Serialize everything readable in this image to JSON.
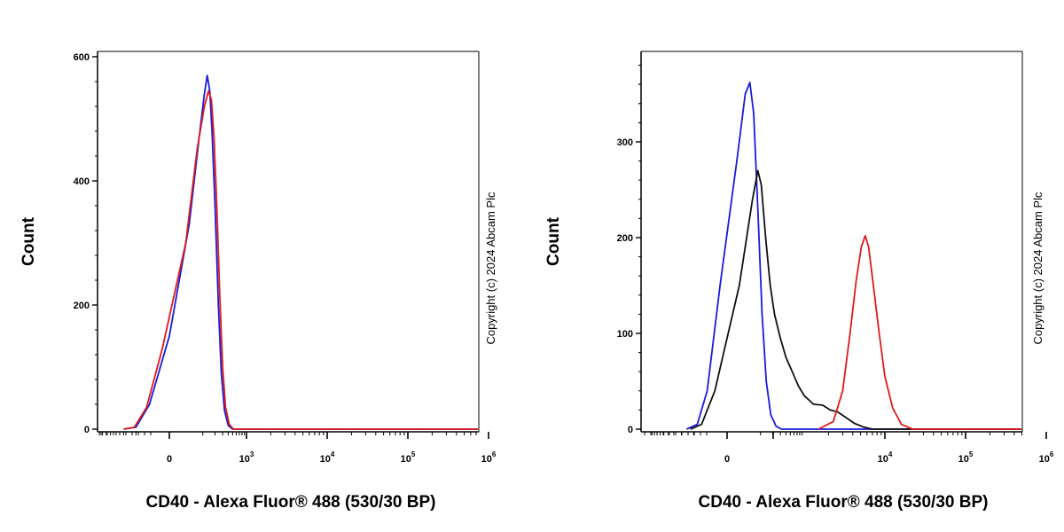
{
  "chart_data": [
    {
      "type": "line",
      "title": "",
      "xlabel": "CD40 - Alexa Fluor® 488 (530/30 BP)",
      "ylabel": "Count",
      "xscale": "biexponential",
      "ylim": [
        0,
        620
      ],
      "yticks": [
        0,
        200,
        400,
        600
      ],
      "xticks": [
        {
          "value": 0,
          "label": "0"
        },
        {
          "value": 1000,
          "base": "10",
          "exp": "3"
        },
        {
          "value": 10000,
          "base": "10",
          "exp": "4"
        },
        {
          "value": 100000,
          "base": "10",
          "exp": "5"
        },
        {
          "value": 1000000,
          "base": "10",
          "exp": "6"
        }
      ],
      "copyright": "Copyright (c) 2024 Abcam Plc",
      "series": [
        {
          "name": "blue",
          "color": "#1a1adc",
          "points": [
            [
              -200,
              0
            ],
            [
              -100,
              3
            ],
            [
              -40,
              40
            ],
            [
              0,
              150
            ],
            [
              40,
              330
            ],
            [
              80,
              470
            ],
            [
              110,
              540
            ],
            [
              130,
              570
            ],
            [
              150,
              545
            ],
            [
              170,
              480
            ],
            [
              200,
              360
            ],
            [
              240,
              200
            ],
            [
              280,
              90
            ],
            [
              330,
              30
            ],
            [
              400,
              6
            ],
            [
              500,
              0
            ],
            [
              1000000,
              0
            ]
          ]
        },
        {
          "name": "red",
          "color": "#dd1a1a",
          "points": [
            [
              -200,
              0
            ],
            [
              -110,
              3
            ],
            [
              -50,
              35
            ],
            [
              -10,
              130
            ],
            [
              30,
              300
            ],
            [
              70,
              450
            ],
            [
              110,
              520
            ],
            [
              140,
              545
            ],
            [
              165,
              530
            ],
            [
              190,
              470
            ],
            [
              220,
              360
            ],
            [
              260,
              210
            ],
            [
              300,
              100
            ],
            [
              350,
              35
            ],
            [
              420,
              8
            ],
            [
              520,
              0
            ],
            [
              1000000,
              0
            ]
          ]
        }
      ]
    },
    {
      "type": "line",
      "title": "",
      "xlabel": "CD40 - Alexa Fluor® 488 (530/30 BP)",
      "ylabel": "Count",
      "xscale": "biexponential",
      "ylim": [
        0,
        395
      ],
      "yticks": [
        0,
        100,
        200,
        300
      ],
      "xticks": [
        {
          "value": 0,
          "label": "0"
        },
        {
          "value": 10000,
          "base": "10",
          "exp": "4"
        },
        {
          "value": 100000,
          "base": "10",
          "exp": "5"
        },
        {
          "value": 1000000,
          "base": "10",
          "exp": "6"
        }
      ],
      "copyright": "Copyright (c) 2024 Abcam Plc",
      "series": [
        {
          "name": "blue",
          "color": "#1a1adc",
          "points": [
            [
              -150,
              0
            ],
            [
              -80,
              5
            ],
            [
              -40,
              40
            ],
            [
              -10,
              150
            ],
            [
              15,
              280
            ],
            [
              35,
              350
            ],
            [
              50,
              362
            ],
            [
              65,
              330
            ],
            [
              85,
              230
            ],
            [
              110,
              120
            ],
            [
              140,
              50
            ],
            [
              180,
              15
            ],
            [
              240,
              3
            ],
            [
              320,
              0
            ],
            [
              1000000,
              0
            ]
          ]
        },
        {
          "name": "black",
          "color": "#111111",
          "points": [
            [
              -120,
              0
            ],
            [
              -60,
              5
            ],
            [
              -20,
              40
            ],
            [
              20,
              150
            ],
            [
              60,
              240
            ],
            [
              85,
              270
            ],
            [
              105,
              255
            ],
            [
              135,
              200
            ],
            [
              175,
              150
            ],
            [
              220,
              120
            ],
            [
              300,
              95
            ],
            [
              400,
              75
            ],
            [
              550,
              60
            ],
            [
              750,
              45
            ],
            [
              1000,
              35
            ],
            [
              1300,
              26
            ],
            [
              1700,
              25
            ],
            [
              2100,
              20
            ],
            [
              2600,
              18
            ],
            [
              3300,
              12
            ],
            [
              4200,
              6
            ],
            [
              5500,
              2
            ],
            [
              7000,
              0
            ],
            [
              1000000,
              0
            ]
          ]
        },
        {
          "name": "red",
          "color": "#dd1a1a",
          "points": [
            [
              1500,
              0
            ],
            [
              2300,
              8
            ],
            [
              3000,
              40
            ],
            [
              3700,
              100
            ],
            [
              4400,
              155
            ],
            [
              5100,
              190
            ],
            [
              5700,
              202
            ],
            [
              6300,
              190
            ],
            [
              7200,
              150
            ],
            [
              8500,
              100
            ],
            [
              10000,
              55
            ],
            [
              12500,
              22
            ],
            [
              16000,
              5
            ],
            [
              22000,
              0
            ],
            [
              1000000,
              0
            ]
          ]
        }
      ]
    }
  ]
}
